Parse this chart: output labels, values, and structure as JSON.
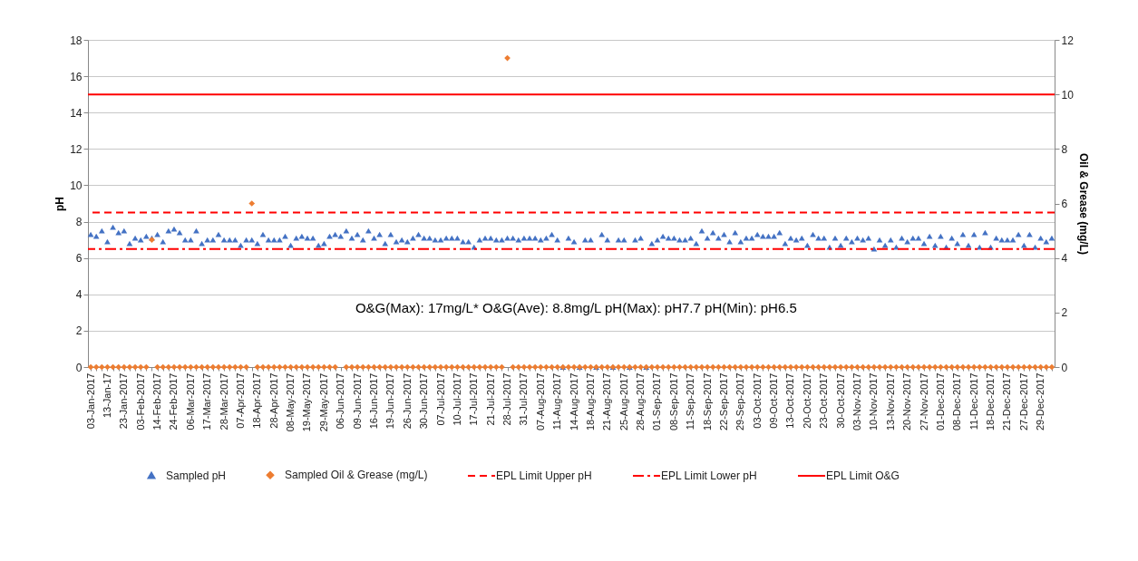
{
  "chart_data": {
    "type": "scatter",
    "ylabel": "pH",
    "y2label": "Oil & Grease (mg/L)",
    "categories": [
      "03-Jan-2017",
      null,
      null,
      "13-Jan-17",
      null,
      null,
      "23-Jan-2017",
      null,
      null,
      "03-Feb-2017",
      null,
      null,
      "14-Feb-2017",
      null,
      null,
      "24-Feb-2017",
      null,
      null,
      "06-Mar-2017",
      null,
      null,
      "17-Mar-2017",
      null,
      null,
      "28-Mar-2017",
      null,
      null,
      "07-Apr-2017",
      null,
      null,
      "18-Apr-2017",
      null,
      null,
      "28-Apr-2017",
      null,
      null,
      "08-May-2017",
      null,
      null,
      "19-May-2017",
      null,
      null,
      "29-May-2017",
      null,
      null,
      "06-Jun-2017",
      null,
      null,
      "09-Jun-2017",
      null,
      null,
      "16-Jun-2017",
      null,
      null,
      "19-Jun-2017",
      null,
      null,
      "26-Jun-2017",
      null,
      null,
      "30-Jun-2017",
      null,
      null,
      "07-Jul-2017",
      null,
      null,
      "10-Jul-2017",
      null,
      null,
      "17-Jul-2017",
      null,
      null,
      "21-Jul-2017",
      null,
      null,
      "28-Jul-2017",
      null,
      null,
      "31-Jul-2017",
      null,
      null,
      "07-Aug-2017",
      null,
      null,
      "11-Aug-2017",
      null,
      null,
      "14-Aug-2017",
      null,
      null,
      "18-Aug-2017",
      null,
      null,
      "21-Aug-2017",
      null,
      null,
      "25-Aug-2017",
      null,
      null,
      "28-Aug-2017",
      null,
      null,
      "01-Sep-2017",
      null,
      null,
      "08-Sep-2017",
      null,
      null,
      "11-Sep-2017",
      null,
      null,
      "18-Sep-2017",
      null,
      null,
      "22-Sep-2017",
      null,
      null,
      "29-Sep-2017",
      null,
      null,
      "03-Oct-2017",
      null,
      null,
      "09-Oct-2017",
      null,
      null,
      "13-Oct-2017",
      null,
      null,
      "20-Oct-2017",
      null,
      null,
      "23-Oct-2017",
      null,
      null,
      "30-Oct-2017",
      null,
      null,
      "03-Nov-2017",
      null,
      null,
      "10-Nov-2017",
      null,
      null,
      "13-Nov-2017",
      null,
      null,
      "20-Nov-2017",
      null,
      null,
      "27-Nov-2017",
      null,
      null,
      "01-Dec-2017",
      null,
      null,
      "08-Dec-2017",
      null,
      null,
      "11-Dec-2017",
      null,
      null,
      "18-Dec-2017",
      null,
      null,
      "21-Dec-2017",
      null,
      null,
      "27-Dec-2017",
      null,
      null,
      "29-Dec-2017",
      null,
      null
    ],
    "series": [
      {
        "name": "Sampled pH",
        "color": "#4472c4",
        "marker": "triangle",
        "values": [
          7.3,
          7.2,
          7.5,
          6.9,
          7.7,
          7.4,
          7.5,
          6.8,
          7.1,
          7.0,
          7.2,
          7.1,
          7.3,
          6.9,
          7.5,
          7.6,
          7.4,
          7.0,
          7.0,
          7.5,
          6.8,
          7.0,
          7.0,
          7.3,
          7.0,
          7.0,
          7.0,
          6.7,
          7.0,
          7.0,
          6.8,
          7.3,
          7.0,
          7.0,
          7.0,
          7.2,
          6.7,
          7.1,
          7.2,
          7.1,
          7.1,
          6.7,
          6.8,
          7.2,
          7.3,
          7.2,
          7.5,
          7.1,
          7.3,
          7.0,
          7.5,
          7.1,
          7.3,
          6.8,
          7.3,
          6.9,
          7.0,
          6.9,
          7.1,
          7.3,
          7.1,
          7.1,
          7.0,
          7.0,
          7.1,
          7.1,
          7.1,
          6.9,
          6.9,
          6.6,
          7.0,
          7.1,
          7.1,
          7.0,
          7.0,
          7.1,
          7.1,
          7.0,
          7.1,
          7.1,
          7.1,
          7.0,
          7.1,
          7.3,
          7.0,
          0,
          7.1,
          6.9,
          0,
          7.0,
          7.0,
          0,
          7.3,
          7.0,
          0,
          7.0,
          7.0,
          0,
          7.0,
          7.1,
          0,
          6.8,
          7.0,
          7.2,
          7.1,
          7.1,
          7.0,
          7.0,
          7.1,
          6.8,
          7.5,
          7.1,
          7.4,
          7.1,
          7.3,
          6.9,
          7.4,
          6.9,
          7.1,
          7.1,
          7.3,
          7.2,
          7.2,
          7.2,
          7.4,
          6.8,
          7.1,
          7.0,
          7.1,
          6.7,
          7.3,
          7.1,
          7.1,
          6.6,
          7.1,
          6.7,
          7.1,
          6.9,
          7.1,
          7.0,
          7.1,
          6.5,
          7.0,
          6.7,
          7.0,
          6.6,
          7.1,
          6.9,
          7.1,
          7.1,
          6.8,
          7.2,
          6.7,
          7.2,
          6.6,
          7.1,
          6.8,
          7.3,
          6.7,
          7.3,
          6.6,
          7.4,
          6.6,
          7.1,
          7.0,
          7.0,
          7.0,
          7.3,
          6.7,
          7.3,
          6.6,
          7.1,
          6.9,
          7.1
        ]
      },
      {
        "name": "Sampled Oil & Grease (mg/L)",
        "color": "#ed7d31",
        "marker": "diamond",
        "values": [
          0,
          0,
          0,
          0,
          0,
          0,
          0,
          0,
          0,
          0,
          0,
          7,
          0,
          0,
          0,
          0,
          0,
          0,
          0,
          0,
          0,
          0,
          0,
          0,
          0,
          0,
          0,
          0,
          0,
          9,
          0,
          0,
          0,
          0,
          0,
          0,
          0,
          0,
          0,
          0,
          0,
          0,
          0,
          0,
          0,
          null,
          0,
          0,
          0,
          0,
          0,
          0,
          0,
          0,
          0,
          0,
          0,
          0,
          0,
          0,
          0,
          0,
          0,
          0,
          0,
          0,
          0,
          0,
          0,
          0,
          0,
          0,
          0,
          0,
          0,
          17,
          0,
          0,
          0,
          0,
          0,
          0,
          0,
          0,
          0,
          0,
          0,
          0,
          0,
          0,
          0,
          0,
          0,
          0,
          0,
          0,
          0,
          0,
          0,
          0,
          0,
          0,
          0,
          0,
          0,
          0,
          0,
          0,
          0,
          0,
          0,
          0,
          0,
          0,
          0,
          0,
          0,
          0,
          0,
          0,
          0,
          0,
          0,
          0,
          0,
          0,
          0,
          0,
          0,
          0,
          0,
          0,
          0,
          0,
          0,
          0,
          0,
          0,
          0,
          0,
          0,
          0,
          0,
          0,
          0,
          0,
          0,
          0,
          0,
          0,
          0,
          0,
          0,
          0,
          0,
          0,
          0,
          0,
          0,
          0,
          0,
          0,
          0,
          0,
          0,
          0,
          0,
          0,
          0,
          0,
          0,
          0,
          0,
          0
        ]
      }
    ],
    "ylim": [
      0,
      18
    ],
    "yticks": [
      0,
      2,
      4,
      6,
      8,
      10,
      12,
      14,
      16,
      18
    ],
    "y2lim": [
      0,
      12
    ],
    "y2ticks": [
      0,
      2,
      4,
      6,
      8,
      10,
      12
    ],
    "ref_lines": [
      {
        "axis": "y",
        "value": 8.5,
        "label": "EPL Limit Upper pH",
        "color": "#ff0000",
        "line_style": "dashed"
      },
      {
        "axis": "y",
        "value": 6.5,
        "label": "EPL Limit Lower pH",
        "color": "#ff0000",
        "line_style": "dashdot"
      },
      {
        "axis": "y2",
        "value": 10,
        "label": "EPL Limit O&G",
        "color": "#ff0000",
        "line_style": "solid"
      }
    ],
    "annotations": [
      "O&G(Max): 17mg/L*   O&G(Ave): 8.8mg/L     pH(Max): pH7.7   pH(Min): pH6.5"
    ],
    "grid": "y",
    "legend": "bottom"
  }
}
